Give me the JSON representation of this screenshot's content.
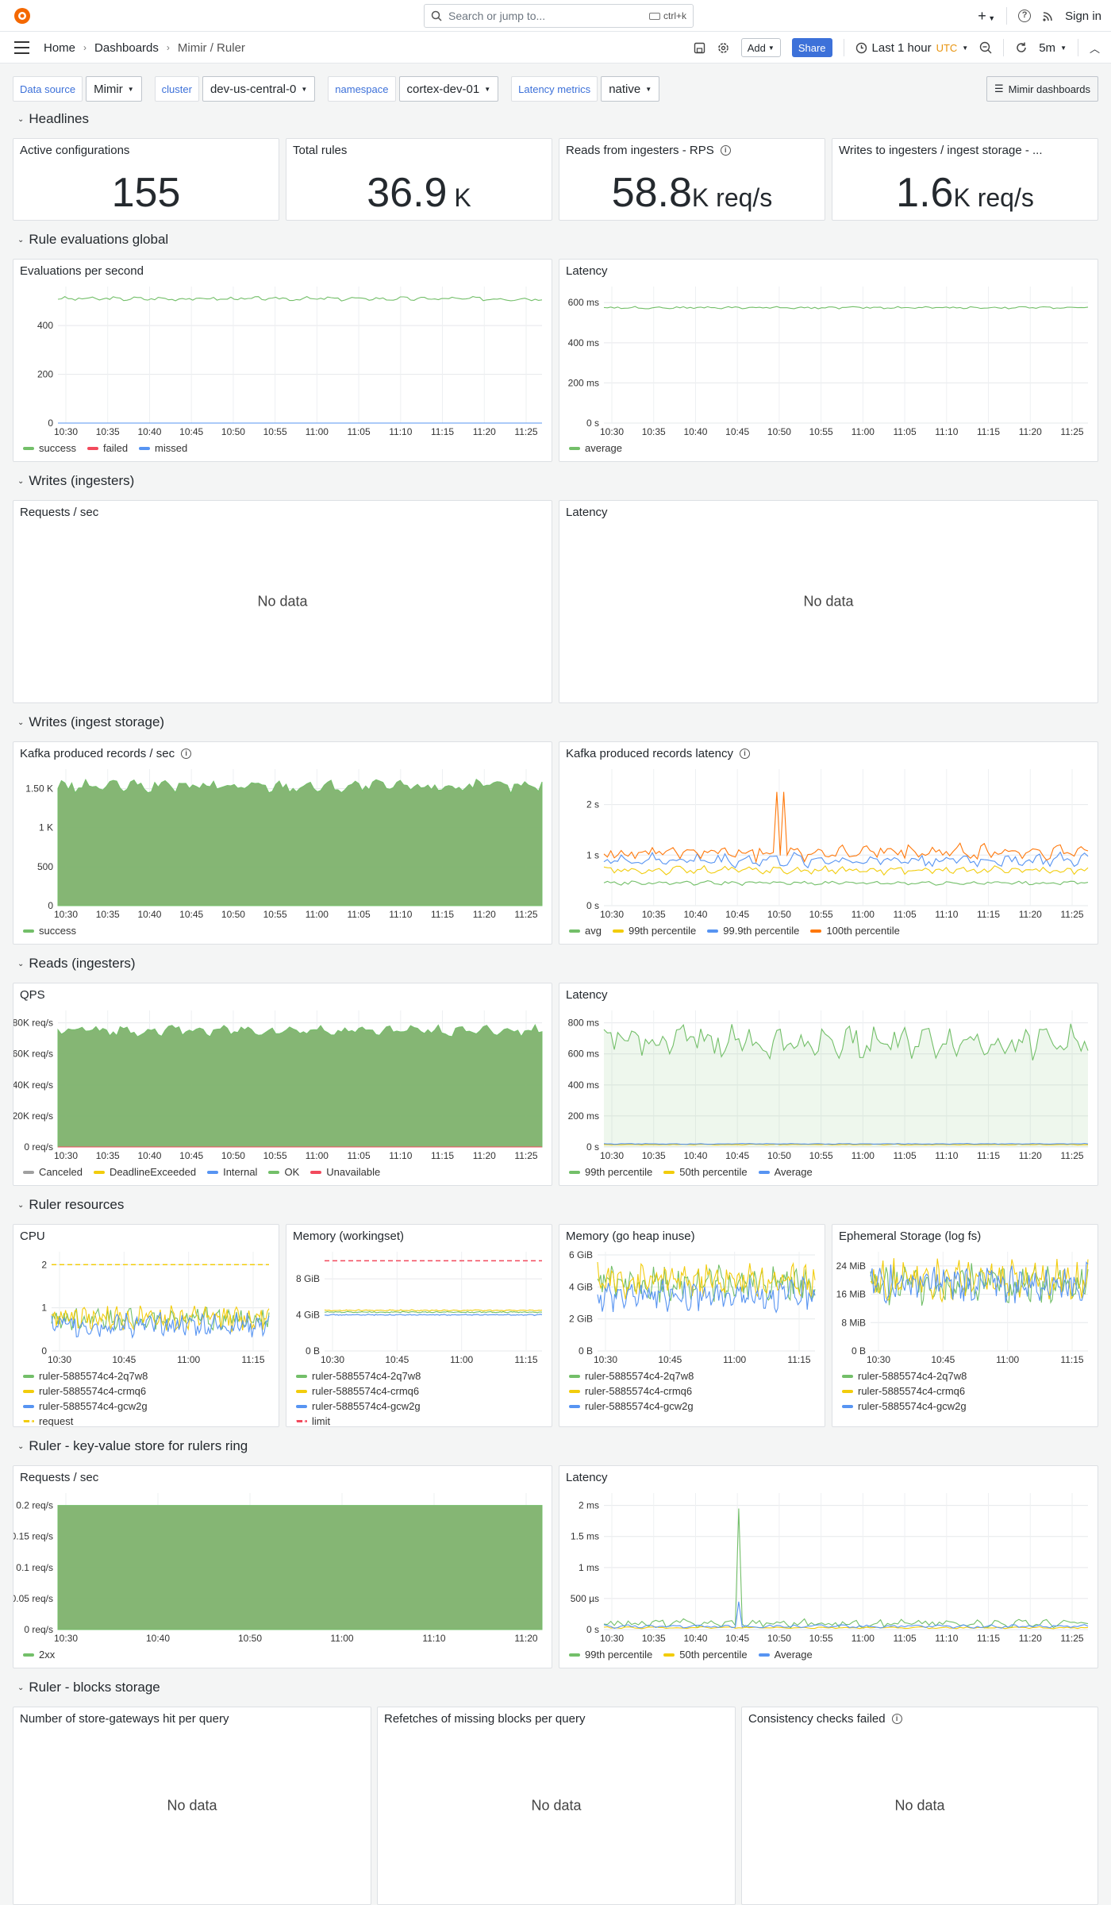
{
  "topbar": {
    "search_placeholder": "Search or jump to...",
    "search_shortcut": "ctrl+k",
    "sign_in": "Sign in"
  },
  "breadcrumb": [
    "Home",
    "Dashboards",
    "Mimir / Ruler"
  ],
  "toolbar": {
    "add": "Add",
    "share": "Share",
    "time_range": "Last 1 hour",
    "tz": "UTC",
    "refresh": "5m"
  },
  "variables": [
    {
      "label": "Data source",
      "value": "Mimir"
    },
    {
      "label": "cluster",
      "value": "dev-us-central-0"
    },
    {
      "label": "namespace",
      "value": "cortex-dev-01"
    },
    {
      "label": "Latency metrics",
      "value": "native"
    }
  ],
  "dashboards_button": "Mimir dashboards",
  "rows": [
    "Headlines",
    "Rule evaluations global",
    "Writes (ingesters)",
    "Writes (ingest storage)",
    "Reads (ingesters)",
    "Ruler resources",
    "Ruler - key-value store for rulers ring",
    "Ruler - blocks storage"
  ],
  "stats": [
    {
      "title": "Active configurations",
      "value": "155",
      "unit": ""
    },
    {
      "title": "Total rules",
      "value": "36.9",
      "unit": " K"
    },
    {
      "title": "Reads from ingesters - RPS",
      "value": "58.8",
      "unit": "K req/s"
    },
    {
      "title": "Writes to ingesters / ingest storage - ...",
      "value": "1.6",
      "unit": "K req/s"
    }
  ],
  "no_data": "No data",
  "colors": {
    "green": "#73bf69",
    "yellow": "#f2cc0c",
    "blue": "#5794f2",
    "red": "#f2495c",
    "orange": "#ff780a",
    "grey": "#a0a0a0",
    "fill": "#7eb26d"
  },
  "chart_data": [
    {
      "id": "evals",
      "title": "Evaluations per second",
      "type": "line",
      "xticks": [
        "10:30",
        "10:35",
        "10:40",
        "10:45",
        "10:50",
        "10:55",
        "11:00",
        "11:05",
        "11:10",
        "11:15",
        "11:20",
        "11:25"
      ],
      "yticks": [
        "0",
        "200",
        "400"
      ],
      "ylim": [
        0,
        560
      ],
      "series": [
        {
          "name": "success",
          "color": "#73bf69",
          "level": 510,
          "noise": 6
        },
        {
          "name": "failed",
          "color": "#f2495c",
          "level": 0,
          "noise": 0
        },
        {
          "name": "missed",
          "color": "#5794f2",
          "level": 0,
          "noise": 0
        }
      ]
    },
    {
      "id": "evallat",
      "title": "Latency",
      "type": "line",
      "xticks": [
        "10:30",
        "10:35",
        "10:40",
        "10:45",
        "10:50",
        "10:55",
        "11:00",
        "11:05",
        "11:10",
        "11:15",
        "11:20",
        "11:25"
      ],
      "yticks": [
        "0 s",
        "200 ms",
        "400 ms",
        "600 ms"
      ],
      "ylim": [
        0,
        680
      ],
      "series": [
        {
          "name": "average",
          "color": "#73bf69",
          "level": 575,
          "noise": 4
        }
      ]
    },
    {
      "id": "writesreq",
      "title": "Requests / sec"
    },
    {
      "id": "writeslat",
      "title": "Latency"
    },
    {
      "id": "kafkarec",
      "title": "Kafka produced records / sec",
      "type": "area",
      "xticks": [
        "10:30",
        "10:35",
        "10:40",
        "10:45",
        "10:50",
        "10:55",
        "11:00",
        "11:05",
        "11:10",
        "11:15",
        "11:20",
        "11:25"
      ],
      "yticks": [
        "0",
        "500",
        "1 K",
        "1.50 K"
      ],
      "ylim": [
        0,
        1750
      ],
      "series": [
        {
          "name": "success",
          "color": "#73bf69",
          "level": 1530,
          "noise": 60
        }
      ]
    },
    {
      "id": "kafkalat",
      "title": "Kafka produced records latency",
      "type": "line",
      "xticks": [
        "10:30",
        "10:35",
        "10:40",
        "10:45",
        "10:50",
        "10:55",
        "11:00",
        "11:05",
        "11:10",
        "11:15",
        "11:20",
        "11:25"
      ],
      "yticks": [
        "0 s",
        "1 s",
        "2 s"
      ],
      "ylim": [
        0,
        2.7
      ],
      "series": [
        {
          "name": "avg",
          "color": "#73bf69",
          "level": 0.45,
          "noise": 0.03
        },
        {
          "name": "99th percentile",
          "color": "#f2cc0c",
          "level": 0.7,
          "noise": 0.06
        },
        {
          "name": "99.9th percentile",
          "color": "#5794f2",
          "level": 0.9,
          "noise": 0.1
        },
        {
          "name": "100th percentile",
          "color": "#ff780a",
          "level": 1.05,
          "noise": 0.12
        }
      ]
    },
    {
      "id": "qps",
      "title": "QPS",
      "type": "area",
      "xticks": [
        "10:30",
        "10:35",
        "10:40",
        "10:45",
        "10:50",
        "10:55",
        "11:00",
        "11:05",
        "11:10",
        "11:15",
        "11:20",
        "11:25"
      ],
      "yticks": [
        "0 req/s",
        "20K req/s",
        "40K req/s",
        "60K req/s",
        "80K req/s"
      ],
      "ylim": [
        0,
        88000
      ],
      "series": [
        {
          "name": "Canceled",
          "color": "#a0a0a0",
          "level": 0,
          "noise": 0
        },
        {
          "name": "DeadlineExceeded",
          "color": "#f2cc0c",
          "level": 0,
          "noise": 0
        },
        {
          "name": "Internal",
          "color": "#5794f2",
          "level": 0,
          "noise": 0
        },
        {
          "name": "OK",
          "color": "#73bf69",
          "level": 75000,
          "noise": 2500
        },
        {
          "name": "Unavailable",
          "color": "#f2495c",
          "level": 0,
          "noise": 0
        }
      ]
    },
    {
      "id": "readlat",
      "title": "Latency",
      "type": "line",
      "xticks": [
        "10:30",
        "10:35",
        "10:40",
        "10:45",
        "10:50",
        "10:55",
        "11:00",
        "11:05",
        "11:10",
        "11:15",
        "11:20",
        "11:25"
      ],
      "yticks": [
        "0 s",
        "200 ms",
        "400 ms",
        "600 ms",
        "800 ms"
      ],
      "ylim": [
        0,
        880
      ],
      "series": [
        {
          "name": "99th percentile",
          "color": "#73bf69",
          "level": 680,
          "noise": 80
        },
        {
          "name": "50th percentile",
          "color": "#f2cc0c",
          "level": 15,
          "noise": 2
        },
        {
          "name": "Average",
          "color": "#5794f2",
          "level": 20,
          "noise": 2
        }
      ]
    },
    {
      "id": "cpu",
      "title": "CPU",
      "type": "line",
      "xticks": [
        "10:30",
        "10:45",
        "11:00",
        "11:15"
      ],
      "yticks": [
        "0",
        "1",
        "2"
      ],
      "ylim": [
        0,
        2.3
      ],
      "series": [
        {
          "name": "ruler-5885574c4-2q7w8",
          "color": "#73bf69",
          "level": 0.75,
          "noise": 0.2
        },
        {
          "name": "ruler-5885574c4-crmq6",
          "color": "#f2cc0c",
          "level": 0.75,
          "noise": 0.2
        },
        {
          "name": "ruler-5885574c4-gcw2g",
          "color": "#5794f2",
          "level": 0.6,
          "noise": 0.2
        },
        {
          "name": "request",
          "color": "#f2cc0c",
          "level": 2,
          "noise": 0,
          "dash": true
        }
      ]
    },
    {
      "id": "memws",
      "title": "Memory (workingset)",
      "type": "line",
      "xticks": [
        "10:30",
        "10:45",
        "11:00",
        "11:15"
      ],
      "yticks": [
        "0 B",
        "4 GiB",
        "8 GiB"
      ],
      "ylim": [
        0,
        11
      ],
      "series": [
        {
          "name": "ruler-5885574c4-2q7w8",
          "color": "#73bf69",
          "level": 4.3,
          "noise": 0.05
        },
        {
          "name": "ruler-5885574c4-crmq6",
          "color": "#f2cc0c",
          "level": 4.5,
          "noise": 0.05
        },
        {
          "name": "ruler-5885574c4-gcw2g",
          "color": "#5794f2",
          "level": 4.0,
          "noise": 0.05
        },
        {
          "name": "limit",
          "color": "#f2495c",
          "level": 10,
          "noise": 0,
          "dash": true
        }
      ]
    },
    {
      "id": "memheap",
      "title": "Memory (go heap inuse)",
      "type": "line",
      "xticks": [
        "10:30",
        "10:45",
        "11:00",
        "11:15"
      ],
      "yticks": [
        "0 B",
        "2 GiB",
        "4 GiB",
        "6 GiB"
      ],
      "ylim": [
        0,
        6.2
      ],
      "series": [
        {
          "name": "ruler-5885574c4-2q7w8",
          "color": "#73bf69",
          "level": 4.2,
          "noise": 0.8
        },
        {
          "name": "ruler-5885574c4-crmq6",
          "color": "#f2cc0c",
          "level": 4.4,
          "noise": 0.8
        },
        {
          "name": "ruler-5885574c4-gcw2g",
          "color": "#5794f2",
          "level": 3.5,
          "noise": 0.7
        }
      ]
    },
    {
      "id": "ephem",
      "title": "Ephemeral Storage (log fs)",
      "type": "line",
      "xticks": [
        "10:30",
        "10:45",
        "11:00",
        "11:15"
      ],
      "yticks": [
        "0 B",
        "8 MiB",
        "16 MiB",
        "24 MiB"
      ],
      "ylim": [
        0,
        28
      ],
      "series": [
        {
          "name": "ruler-5885574c4-2q7w8",
          "color": "#73bf69",
          "level": 19,
          "noise": 4
        },
        {
          "name": "ruler-5885574c4-crmq6",
          "color": "#f2cc0c",
          "level": 20,
          "noise": 4
        },
        {
          "name": "ruler-5885574c4-gcw2g",
          "color": "#5794f2",
          "level": 19,
          "noise": 4
        }
      ]
    },
    {
      "id": "kvreq",
      "title": "Requests / sec",
      "type": "area",
      "xticks": [
        "10:30",
        "10:40",
        "10:50",
        "11:00",
        "11:10",
        "11:20"
      ],
      "yticks": [
        "0 req/s",
        "0.05 req/s",
        "0.1 req/s",
        "0.15 req/s",
        "0.2 req/s"
      ],
      "ylim": [
        0,
        0.22
      ],
      "series": [
        {
          "name": "2xx",
          "color": "#73bf69",
          "level": 0.2,
          "noise": 0
        }
      ]
    },
    {
      "id": "kvlat",
      "title": "Latency",
      "type": "line",
      "xticks": [
        "10:30",
        "10:35",
        "10:40",
        "10:45",
        "10:50",
        "10:55",
        "11:00",
        "11:05",
        "11:10",
        "11:15",
        "11:20",
        "11:25"
      ],
      "yticks": [
        "0 s",
        "500 µs",
        "1 ms",
        "1.5 ms",
        "2 ms"
      ],
      "ylim": [
        0,
        2.2
      ],
      "series": [
        {
          "name": "99th percentile",
          "color": "#73bf69",
          "level": 0.1,
          "noise": 0.05,
          "spike": 1.95
        },
        {
          "name": "50th percentile",
          "color": "#f2cc0c",
          "level": 0.03,
          "noise": 0.01
        },
        {
          "name": "Average",
          "color": "#5794f2",
          "level": 0.05,
          "noise": 0.02,
          "spike": 0.45
        }
      ]
    },
    {
      "id": "sgw",
      "title": "Number of store-gateways hit per query"
    },
    {
      "id": "refetch",
      "title": "Refetches of missing blocks per query"
    },
    {
      "id": "consist",
      "title": "Consistency checks failed"
    }
  ]
}
